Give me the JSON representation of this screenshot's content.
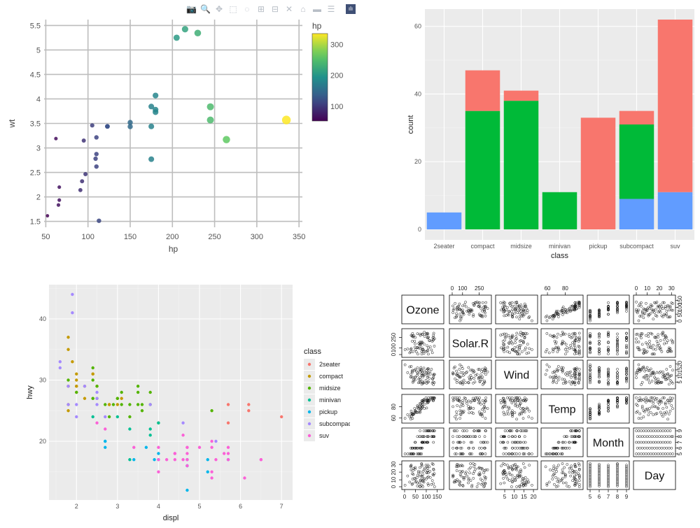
{
  "modebar": {
    "icons": [
      "camera-icon",
      "zoom-icon",
      "pan-icon",
      "box-select-icon",
      "lasso-icon",
      "zoom-in-icon",
      "zoom-out-icon",
      "autoscale-icon",
      "reset-axes-icon",
      "spike-lines-icon",
      "compare-hover-icon",
      "plotly-logo-icon"
    ],
    "glyphs": [
      "📷",
      "🔍",
      "✥",
      "⬚",
      "◌",
      "⊞",
      "⊟",
      "✕",
      "⌂",
      "▬",
      "☰",
      "ılı"
    ]
  },
  "colors": {
    "ggplot_panel": "#ebebeb",
    "ggplot_grid": "#ffffff",
    "plotly_grid": "#bdbdbd",
    "stack_red": "#f8766d",
    "stack_green": "#00ba38",
    "stack_blue": "#619cff"
  },
  "chart_data": [
    {
      "id": "plotly-scatter",
      "type": "scatter",
      "xlabel": "hp",
      "ylabel": "wt",
      "xlim": [
        48,
        354
      ],
      "ylim": [
        1.38,
        5.62
      ],
      "xticks": [
        50,
        100,
        150,
        200,
        250,
        300,
        350
      ],
      "yticks": [
        1.5,
        2,
        2.5,
        3,
        3.5,
        4,
        4.5,
        5,
        5.5
      ],
      "ytick_labels": [
        "1.5",
        "2",
        "2.5",
        "3",
        "3.5",
        "4",
        "4.5",
        "5",
        "5.5"
      ],
      "colorbar": {
        "title": "hp",
        "ticks": [
          100,
          200,
          300
        ],
        "min": 52,
        "max": 335
      },
      "points": [
        [
          110,
          2.62
        ],
        [
          110,
          2.875
        ],
        [
          93,
          2.32
        ],
        [
          110,
          3.215
        ],
        [
          175,
          3.44
        ],
        [
          105,
          3.46
        ],
        [
          245,
          3.57
        ],
        [
          62,
          3.19
        ],
        [
          95,
          3.15
        ],
        [
          123,
          3.44
        ],
        [
          123,
          3.44
        ],
        [
          180,
          4.07
        ],
        [
          180,
          3.73
        ],
        [
          180,
          3.78
        ],
        [
          205,
          5.25
        ],
        [
          215,
          5.424
        ],
        [
          230,
          5.345
        ],
        [
          66,
          2.2
        ],
        [
          52,
          1.615
        ],
        [
          65,
          1.835
        ],
        [
          97,
          2.465
        ],
        [
          150,
          3.52
        ],
        [
          150,
          3.435
        ],
        [
          245,
          3.84
        ],
        [
          175,
          3.845
        ],
        [
          66,
          1.935
        ],
        [
          91,
          2.14
        ],
        [
          113,
          1.513
        ],
        [
          264,
          3.17
        ],
        [
          175,
          2.77
        ],
        [
          335,
          3.57
        ],
        [
          109,
          2.78
        ]
      ]
    },
    {
      "id": "stacked-bar",
      "type": "bar",
      "xlabel": "class",
      "ylabel": "count",
      "ylim": [
        -3.1,
        65.1
      ],
      "yticks": [
        0,
        20,
        40,
        60
      ],
      "categories": [
        "2seater",
        "compact",
        "midsize",
        "minivan",
        "pickup",
        "subcompact",
        "suv"
      ],
      "series": [
        {
          "name": "red",
          "values": [
            0,
            12,
            3,
            0,
            33,
            4,
            51
          ]
        },
        {
          "name": "green",
          "values": [
            0,
            35,
            38,
            11,
            0,
            22,
            0
          ]
        },
        {
          "name": "blue",
          "values": [
            5,
            0,
            0,
            0,
            0,
            9,
            11
          ]
        }
      ]
    },
    {
      "id": "ggplot-scatter",
      "type": "scatter",
      "xlabel": "displ",
      "ylabel": "hwy",
      "xlim": [
        1.33,
        7.27
      ],
      "ylim": [
        10.4,
        45.6
      ],
      "xticks": [
        2,
        3,
        4,
        5,
        6,
        7
      ],
      "yticks": [
        20,
        30,
        40
      ],
      "legend_title": "class",
      "legend_position": "right",
      "legend": [
        {
          "label": "2seater",
          "color": "#f8766d"
        },
        {
          "label": "compact",
          "color": "#c49a00"
        },
        {
          "label": "midsize",
          "color": "#53b400"
        },
        {
          "label": "minivan",
          "color": "#00c094"
        },
        {
          "label": "pickup",
          "color": "#00b6eb"
        },
        {
          "label": "subcompact",
          "color": "#a58aff"
        },
        {
          "label": "suv",
          "color": "#fb61d7"
        }
      ],
      "points": [
        [
          5.7,
          26,
          0
        ],
        [
          5.7,
          23,
          0
        ],
        [
          6.2,
          26,
          0
        ],
        [
          6.2,
          25,
          0
        ],
        [
          7.0,
          24,
          0
        ],
        [
          1.8,
          29,
          1
        ],
        [
          1.8,
          29,
          1
        ],
        [
          2.0,
          31,
          1
        ],
        [
          2.0,
          30,
          1
        ],
        [
          2.8,
          26,
          1
        ],
        [
          2.8,
          26,
          1
        ],
        [
          3.1,
          27,
          1
        ],
        [
          1.8,
          26,
          1
        ],
        [
          1.8,
          25,
          1
        ],
        [
          2.0,
          28,
          1
        ],
        [
          2.2,
          27,
          1
        ],
        [
          2.2,
          29,
          1
        ],
        [
          2.4,
          31,
          1
        ],
        [
          2.4,
          31,
          1
        ],
        [
          3.0,
          26,
          1
        ],
        [
          1.9,
          33,
          1
        ],
        [
          2.0,
          29,
          1
        ],
        [
          2.5,
          29,
          1
        ],
        [
          1.8,
          37,
          1
        ],
        [
          1.8,
          35,
          1
        ],
        [
          2.0,
          29,
          1
        ],
        [
          2.4,
          27,
          2
        ],
        [
          2.4,
          30,
          2
        ],
        [
          3.1,
          26,
          2
        ],
        [
          3.5,
          29,
          2
        ],
        [
          3.6,
          26,
          2
        ],
        [
          2.4,
          27,
          2
        ],
        [
          3.0,
          27,
          2
        ],
        [
          3.3,
          26,
          2
        ],
        [
          3.5,
          28,
          2
        ],
        [
          3.8,
          26,
          2
        ],
        [
          3.8,
          28,
          2
        ],
        [
          2.4,
          32,
          2
        ],
        [
          2.5,
          29,
          2
        ],
        [
          3.5,
          26,
          2
        ],
        [
          5.3,
          25,
          2
        ],
        [
          2.5,
          27,
          2
        ],
        [
          2.7,
          26,
          2
        ],
        [
          2.9,
          26,
          2
        ],
        [
          3.3,
          24,
          2
        ],
        [
          1.8,
          30,
          2
        ],
        [
          2.0,
          28,
          2
        ],
        [
          2.8,
          24,
          2
        ],
        [
          3.6,
          25,
          2
        ],
        [
          4.0,
          23,
          2
        ],
        [
          3.0,
          27,
          2
        ],
        [
          3.1,
          28,
          2
        ],
        [
          2.4,
          24,
          3
        ],
        [
          3.0,
          24,
          3
        ],
        [
          3.3,
          22,
          3
        ],
        [
          3.8,
          22,
          3
        ],
        [
          3.8,
          21,
          3
        ],
        [
          4.0,
          23,
          3
        ],
        [
          3.3,
          17,
          3
        ],
        [
          2.7,
          20,
          4
        ],
        [
          2.7,
          19,
          4
        ],
        [
          2.7,
          20,
          4
        ],
        [
          3.4,
          17,
          4
        ],
        [
          4.0,
          17,
          4
        ],
        [
          4.7,
          16,
          4
        ],
        [
          4.7,
          12,
          4
        ],
        [
          5.2,
          15,
          4
        ],
        [
          5.7,
          17,
          4
        ],
        [
          3.9,
          17,
          4
        ],
        [
          4.7,
          16,
          4
        ],
        [
          5.2,
          17,
          4
        ],
        [
          4.0,
          18,
          4
        ],
        [
          4.7,
          17,
          4
        ],
        [
          3.7,
          19,
          4
        ],
        [
          1.6,
          33,
          5
        ],
        [
          1.6,
          32,
          5
        ],
        [
          1.8,
          29,
          5
        ],
        [
          1.8,
          26,
          5
        ],
        [
          1.9,
          44,
          5
        ],
        [
          1.9,
          41,
          5
        ],
        [
          2.2,
          29,
          5
        ],
        [
          2.5,
          26,
          5
        ],
        [
          2.5,
          27,
          5
        ],
        [
          2.0,
          26,
          5
        ],
        [
          2.5,
          28,
          5
        ],
        [
          2.0,
          24,
          5
        ],
        [
          2.7,
          24,
          5
        ],
        [
          3.8,
          26,
          5
        ],
        [
          4.6,
          23,
          5
        ],
        [
          5.4,
          20,
          5
        ],
        [
          5.3,
          20,
          6
        ],
        [
          5.7,
          17,
          6
        ],
        [
          6.5,
          17,
          6
        ],
        [
          4.7,
          17,
          6
        ],
        [
          5.3,
          19,
          6
        ],
        [
          4.0,
          15,
          6
        ],
        [
          4.6,
          17,
          6
        ],
        [
          5.4,
          17,
          6
        ],
        [
          4.4,
          17,
          6
        ],
        [
          4.6,
          21,
          6
        ],
        [
          4.0,
          19,
          6
        ],
        [
          5.0,
          19,
          6
        ],
        [
          2.7,
          22,
          6
        ],
        [
          3.4,
          19,
          6
        ],
        [
          4.2,
          17,
          6
        ],
        [
          4.7,
          19,
          6
        ],
        [
          5.7,
          19,
          6
        ],
        [
          6.1,
          14,
          6
        ],
        [
          5.3,
          14,
          6
        ],
        [
          4.4,
          18,
          6
        ],
        [
          5.3,
          15,
          6
        ],
        [
          4.4,
          18,
          6
        ],
        [
          2.5,
          23,
          6
        ],
        [
          4.7,
          16,
          6
        ],
        [
          4.0,
          17,
          6
        ],
        [
          4.7,
          19,
          6
        ],
        [
          5.6,
          18,
          6
        ],
        [
          4.7,
          18,
          6
        ],
        [
          5.7,
          18,
          6
        ],
        [
          6.5,
          17,
          6
        ]
      ]
    },
    {
      "id": "pairs-matrix",
      "type": "scatter",
      "variables": [
        "Ozone",
        "Solar.R",
        "Wind",
        "Temp",
        "Month",
        "Day"
      ],
      "ranges": [
        [
          0,
          168
        ],
        [
          7,
          334
        ],
        [
          1.7,
          20.7
        ],
        [
          56,
          97
        ],
        [
          5,
          9
        ],
        [
          1,
          31
        ]
      ],
      "axis_ticks": [
        [
          0,
          50,
          100,
          150
        ],
        [
          0,
          100,
          250
        ],
        [
          5,
          10,
          15,
          20
        ],
        [
          60,
          80
        ],
        [
          5,
          6,
          7,
          8,
          9
        ],
        [
          0,
          10,
          20,
          30
        ]
      ],
      "axis_labels": [
        [
          "0",
          "50",
          "100",
          "150"
        ],
        [
          "0",
          "100",
          "250"
        ],
        [
          "5",
          "10",
          "15",
          "20"
        ],
        [
          "60",
          "80"
        ],
        [
          "5",
          "6",
          "7",
          "8",
          "9"
        ],
        [
          "0",
          "10",
          "20",
          "30"
        ]
      ],
      "n_points": 153
    }
  ]
}
